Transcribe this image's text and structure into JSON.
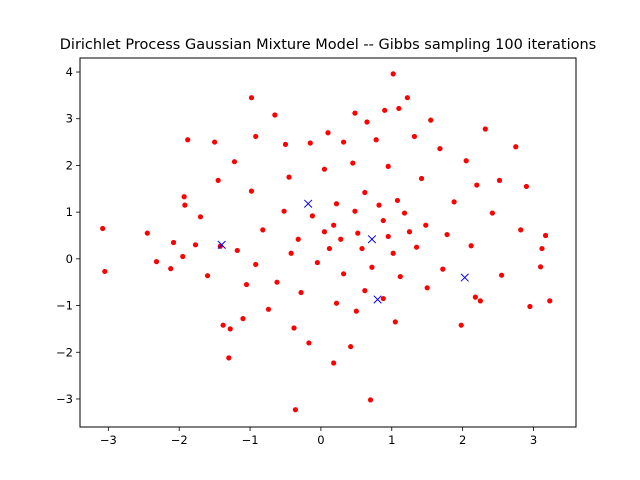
{
  "chart_data": {
    "type": "scatter",
    "title": "Dirichlet Process Gaussian Mixture Model -- Gibbs sampling 100 iterations",
    "xlabel": "",
    "ylabel": "",
    "xlim": [
      -3.4,
      3.6
    ],
    "ylim": [
      -3.6,
      4.3
    ],
    "xticks": [
      -3,
      -2,
      -1,
      0,
      1,
      2,
      3
    ],
    "yticks": [
      -3,
      -2,
      -1,
      0,
      1,
      2,
      3,
      4
    ],
    "grid": false,
    "legend": "none",
    "series": [
      {
        "marker": "circle",
        "color": "#ff0000",
        "points": [
          [
            -3.08,
            0.65
          ],
          [
            -3.05,
            -0.27
          ],
          [
            -2.45,
            0.55
          ],
          [
            -2.32,
            -0.06
          ],
          [
            -2.12,
            -0.21
          ],
          [
            -2.08,
            0.35
          ],
          [
            -1.93,
            1.33
          ],
          [
            -1.92,
            1.15
          ],
          [
            -1.88,
            2.55
          ],
          [
            -1.77,
            0.3
          ],
          [
            -1.5,
            2.5
          ],
          [
            -1.42,
            0.27
          ],
          [
            -1.38,
            -1.42
          ],
          [
            -1.3,
            -2.12
          ],
          [
            -1.28,
            -1.5
          ],
          [
            -1.1,
            -1.28
          ],
          [
            -0.98,
            3.45
          ],
          [
            -0.65,
            3.08
          ],
          [
            -0.36,
            -3.23
          ],
          [
            0.7,
            -3.02
          ],
          [
            0.18,
            -2.23
          ],
          [
            0.42,
            -1.88
          ],
          [
            0.48,
            3.12
          ],
          [
            0.65,
            2.93
          ],
          [
            0.9,
            3.18
          ],
          [
            1.1,
            3.22
          ],
          [
            1.02,
            3.96
          ],
          [
            1.22,
            3.45
          ],
          [
            1.55,
            2.97
          ],
          [
            2.32,
            2.78
          ],
          [
            2.75,
            2.4
          ],
          [
            2.52,
            1.68
          ],
          [
            2.9,
            1.55
          ],
          [
            2.82,
            0.62
          ],
          [
            3.12,
            0.22
          ],
          [
            3.17,
            0.5
          ],
          [
            3.1,
            -0.17
          ],
          [
            3.23,
            -0.9
          ],
          [
            2.95,
            -1.02
          ],
          [
            2.55,
            -0.35
          ],
          [
            2.18,
            -0.82
          ],
          [
            2.25,
            -0.9
          ],
          [
            1.98,
            -1.42
          ],
          [
            1.05,
            -1.35
          ],
          [
            0.88,
            -0.85
          ],
          [
            0.5,
            -1.12
          ],
          [
            -0.38,
            -1.48
          ],
          [
            -0.17,
            -1.8
          ],
          [
            -0.74,
            -1.08
          ],
          [
            -1.05,
            -0.55
          ],
          [
            -1.6,
            -0.36
          ],
          [
            -1.95,
            0.05
          ],
          [
            -1.7,
            0.9
          ],
          [
            -1.45,
            1.68
          ],
          [
            -1.22,
            2.08
          ],
          [
            -0.92,
            2.62
          ],
          [
            -0.5,
            2.45
          ],
          [
            -0.15,
            2.48
          ],
          [
            0.1,
            2.7
          ],
          [
            0.32,
            2.5
          ],
          [
            0.78,
            2.55
          ],
          [
            1.32,
            2.62
          ],
          [
            1.68,
            2.36
          ],
          [
            2.05,
            2.1
          ],
          [
            2.2,
            1.58
          ],
          [
            1.88,
            1.22
          ],
          [
            2.42,
            0.98
          ],
          [
            1.78,
            0.52
          ],
          [
            2.12,
            0.28
          ],
          [
            1.72,
            -0.22
          ],
          [
            1.5,
            -0.62
          ],
          [
            1.12,
            -0.38
          ],
          [
            0.62,
            -0.68
          ],
          [
            0.22,
            -0.95
          ],
          [
            -0.28,
            -0.72
          ],
          [
            -0.62,
            -0.5
          ],
          [
            -0.92,
            -0.12
          ],
          [
            -1.18,
            0.18
          ],
          [
            -0.82,
            0.62
          ],
          [
            -0.52,
            1.02
          ],
          [
            -0.98,
            1.45
          ],
          [
            -0.45,
            1.75
          ],
          [
            0.05,
            1.92
          ],
          [
            0.45,
            2.05
          ],
          [
            0.95,
            1.98
          ],
          [
            1.42,
            1.72
          ],
          [
            1.08,
            1.25
          ],
          [
            0.62,
            1.42
          ],
          [
            0.22,
            1.18
          ],
          [
            -0.12,
            0.92
          ],
          [
            -0.32,
            0.42
          ],
          [
            0.12,
            0.22
          ],
          [
            0.52,
            0.55
          ],
          [
            0.88,
            0.82
          ],
          [
            1.25,
            0.58
          ],
          [
            1.02,
            0.12
          ],
          [
            0.72,
            -0.18
          ],
          [
            0.32,
            -0.32
          ],
          [
            -0.05,
            -0.08
          ],
          [
            -0.42,
            0.12
          ],
          [
            0.18,
            0.72
          ],
          [
            0.48,
            1.02
          ],
          [
            0.82,
            1.15
          ],
          [
            1.18,
            0.98
          ],
          [
            1.48,
            0.72
          ],
          [
            1.35,
            0.25
          ],
          [
            0.95,
            0.48
          ],
          [
            0.58,
            0.22
          ],
          [
            0.28,
            0.42
          ],
          [
            0.05,
            0.58
          ]
        ]
      },
      {
        "marker": "x",
        "color": "#0000ff",
        "points": [
          [
            -1.4,
            0.3
          ],
          [
            -0.18,
            1.18
          ],
          [
            0.72,
            0.42
          ],
          [
            2.03,
            -0.4
          ],
          [
            0.8,
            -0.87
          ]
        ]
      }
    ]
  }
}
